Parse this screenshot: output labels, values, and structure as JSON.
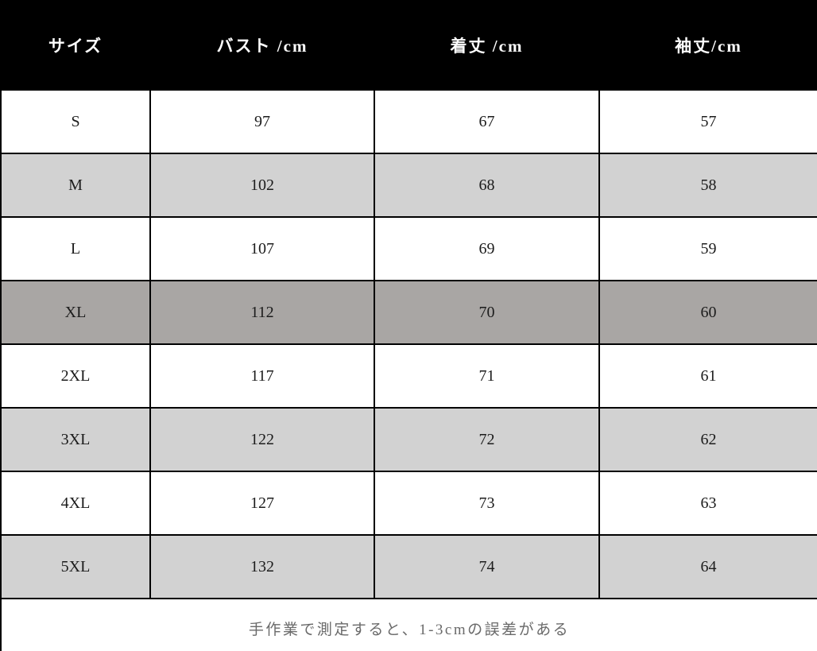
{
  "colors": {
    "header_bg": "#000000",
    "header_text": "#ffffff",
    "row_white_bg": "#ffffff",
    "row_gray_bg": "#d2d2d2",
    "row_highlight_bg": "#a9a6a4",
    "border": "#000000",
    "cell_text": "#1c1c1c",
    "note_text": "#6a6a6a"
  },
  "table": {
    "headers": [
      "サイズ",
      "バスト /cm",
      "着丈 /cm",
      "袖丈/cm"
    ],
    "rows": [
      {
        "size": "S",
        "bust": "97",
        "length": "67",
        "sleeve": "57"
      },
      {
        "size": "M",
        "bust": "102",
        "length": "68",
        "sleeve": "58"
      },
      {
        "size": "L",
        "bust": "107",
        "length": "69",
        "sleeve": "59"
      },
      {
        "size": "XL",
        "bust": "112",
        "length": "70",
        "sleeve": "60"
      },
      {
        "size": "2XL",
        "bust": "117",
        "length": "71",
        "sleeve": "61"
      },
      {
        "size": "3XL",
        "bust": "122",
        "length": "72",
        "sleeve": "62"
      },
      {
        "size": "4XL",
        "bust": "127",
        "length": "73",
        "sleeve": "63"
      },
      {
        "size": "5XL",
        "bust": "132",
        "length": "74",
        "sleeve": "64"
      }
    ],
    "note": "手作業で測定すると、1-3cmの誤差がある"
  },
  "chart_data": {
    "type": "table",
    "title": "",
    "columns": [
      "サイズ",
      "バスト /cm",
      "着丈 /cm",
      "袖丈/cm"
    ],
    "rows": [
      [
        "S",
        97,
        67,
        57
      ],
      [
        "M",
        102,
        68,
        58
      ],
      [
        "L",
        107,
        69,
        59
      ],
      [
        "XL",
        112,
        70,
        60
      ],
      [
        "2XL",
        117,
        71,
        61
      ],
      [
        "3XL",
        122,
        72,
        62
      ],
      [
        "4XL",
        127,
        73,
        63
      ],
      [
        "5XL",
        132,
        74,
        64
      ]
    ],
    "note": "手作業で測定すると、1-3cmの誤差がある"
  }
}
